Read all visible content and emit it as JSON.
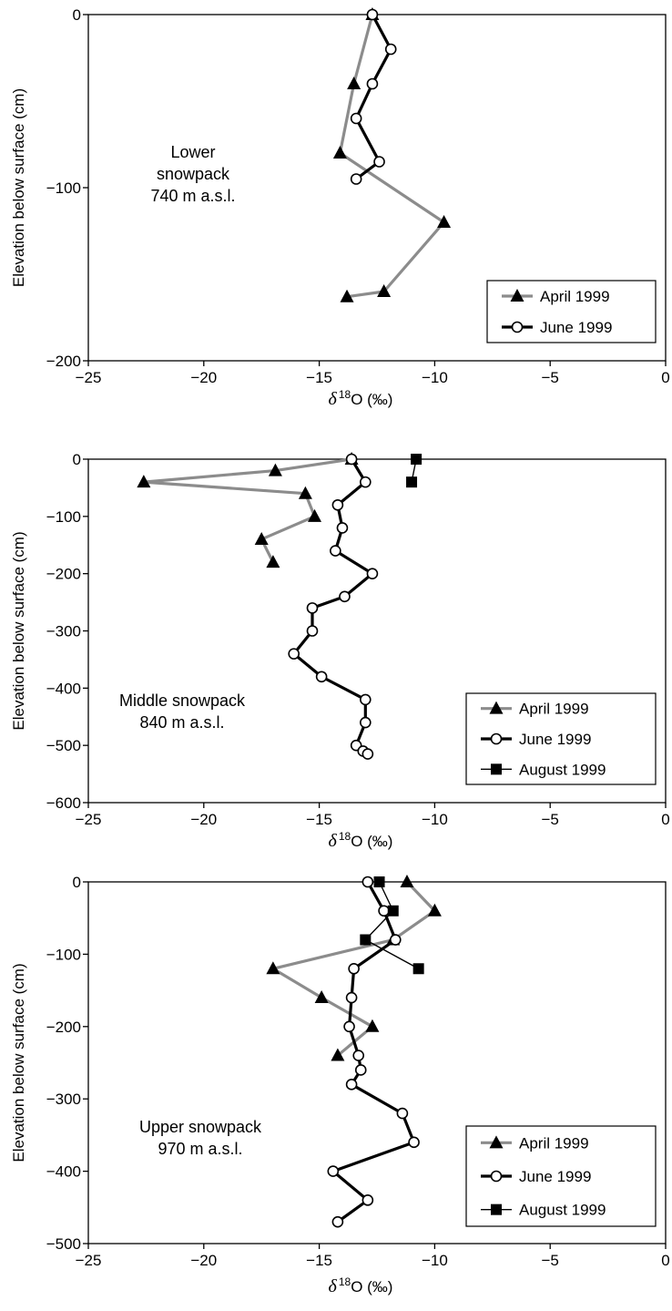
{
  "chart_data": [
    {
      "type": "line",
      "xlabel": {
        "symbol": "δ",
        "sup": "18",
        "rest": "O (‰)"
      },
      "ylabel": "Elevation below surface (cm)",
      "xlim": [
        -25,
        0
      ],
      "ylim": [
        -200,
        0
      ],
      "xticks": [
        -25,
        -20,
        -15,
        -10,
        -5,
        0
      ],
      "yticks": [
        0,
        -100,
        -200
      ],
      "annotation": [
        "Lower",
        "snowpack",
        "740 m a.s.l."
      ],
      "legend_position": "bottom-right",
      "series": [
        {
          "name": "April 1999",
          "color": "#8c8c8c",
          "marker": "triangle",
          "x": [
            -12.7,
            -13.5,
            -14.1,
            -9.6,
            -12.2,
            -13.8
          ],
          "y": [
            0,
            -40,
            -80,
            -120,
            -160,
            -163
          ]
        },
        {
          "name": "June 1999",
          "color": "#000000",
          "marker": "circle",
          "x": [
            -12.7,
            -11.9,
            -12.7,
            -13.4,
            -12.4,
            -13.4
          ],
          "y": [
            0,
            -20,
            -40,
            -60,
            -85,
            -95
          ]
        }
      ]
    },
    {
      "type": "line",
      "xlabel": {
        "symbol": "δ",
        "sup": "18",
        "rest": "O (‰)"
      },
      "ylabel": "Elevation below surface (cm)",
      "xlim": [
        -25,
        0
      ],
      "ylim": [
        -600,
        0
      ],
      "xticks": [
        -25,
        -20,
        -15,
        -10,
        -5,
        0
      ],
      "yticks": [
        0,
        -100,
        -200,
        -300,
        -400,
        -500,
        -600
      ],
      "annotation": [
        "Middle snowpack",
        "840 m a.s.l."
      ],
      "legend_position": "bottom-right",
      "series": [
        {
          "name": "April 1999",
          "color": "#8c8c8c",
          "marker": "triangle",
          "x": [
            -13.6,
            -16.9,
            -22.6,
            -15.6,
            -15.2,
            -17.5,
            -17.0
          ],
          "y": [
            0,
            -20,
            -40,
            -60,
            -100,
            -140,
            -180
          ]
        },
        {
          "name": "June 1999",
          "color": "#000000",
          "marker": "circle",
          "x": [
            -13.6,
            -13.0,
            -14.2,
            -14.0,
            -14.3,
            -12.7,
            -13.9,
            -15.3,
            -15.3,
            -16.1,
            -14.9,
            -13.0,
            -13.0,
            -13.4,
            -13.1,
            -12.9
          ],
          "y": [
            0,
            -40,
            -80,
            -120,
            -160,
            -200,
            -240,
            -260,
            -300,
            -340,
            -380,
            -420,
            -460,
            -500,
            -510,
            -515
          ]
        },
        {
          "name": "August 1999",
          "color": "#000000",
          "marker": "square",
          "x": [
            -10.8,
            -11.0
          ],
          "y": [
            0,
            -40
          ]
        }
      ]
    },
    {
      "type": "line",
      "xlabel": {
        "symbol": "δ",
        "sup": "18",
        "rest": "O (‰)"
      },
      "ylabel": "Elevation below surface (cm)",
      "xlim": [
        -25,
        0
      ],
      "ylim": [
        -500,
        0
      ],
      "xticks": [
        -25,
        -20,
        -15,
        -10,
        -5,
        0
      ],
      "yticks": [
        0,
        -100,
        -200,
        -300,
        -400,
        -500
      ],
      "annotation": [
        "Upper snowpack",
        "970 m a.s.l."
      ],
      "legend_position": "bottom-right",
      "series": [
        {
          "name": "April 1999",
          "color": "#8c8c8c",
          "marker": "triangle",
          "x": [
            -11.2,
            -10.0,
            -11.8,
            -17.0,
            -14.9,
            -12.7,
            -14.2
          ],
          "y": [
            0,
            -40,
            -80,
            -120,
            -160,
            -200,
            -240
          ]
        },
        {
          "name": "June 1999",
          "color": "#000000",
          "marker": "circle",
          "x": [
            -12.9,
            -12.2,
            -11.7,
            -13.5,
            -13.6,
            -13.7,
            -13.3,
            -13.2,
            -13.6,
            -11.4,
            -10.9,
            -14.4,
            -12.9,
            -14.2
          ],
          "y": [
            0,
            -40,
            -80,
            -120,
            -160,
            -200,
            -240,
            -260,
            -280,
            -320,
            -360,
            -400,
            -440,
            -470
          ]
        },
        {
          "name": "August 1999",
          "color": "#000000",
          "marker": "square",
          "x": [
            -12.4,
            -11.8,
            -13.0,
            -10.7
          ],
          "y": [
            0,
            -40,
            -80,
            -120
          ]
        }
      ]
    }
  ]
}
